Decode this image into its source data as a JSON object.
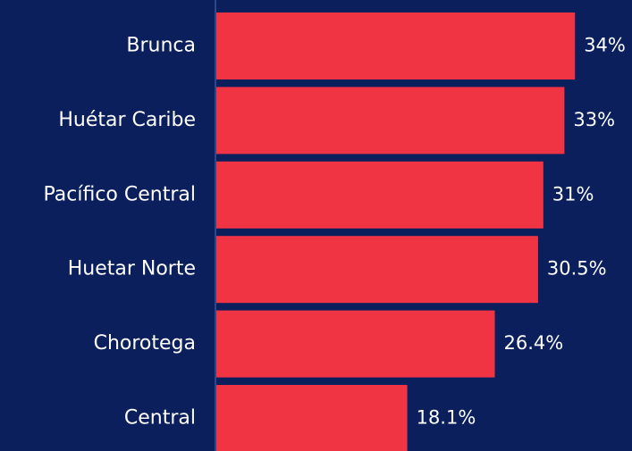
{
  "chart_data": {
    "type": "bar",
    "orientation": "horizontal",
    "categories": [
      "Brunca",
      "Huétar Caribe",
      "Pacífico Central",
      "Huetar Norte",
      "Chorotega",
      "Central"
    ],
    "values": [
      34,
      33,
      31,
      30.5,
      26.4,
      18.1
    ],
    "value_labels": [
      "34%",
      "33%",
      "31%",
      "30.5%",
      "26.4%",
      "18.1%"
    ],
    "color": "#f03443"
  }
}
